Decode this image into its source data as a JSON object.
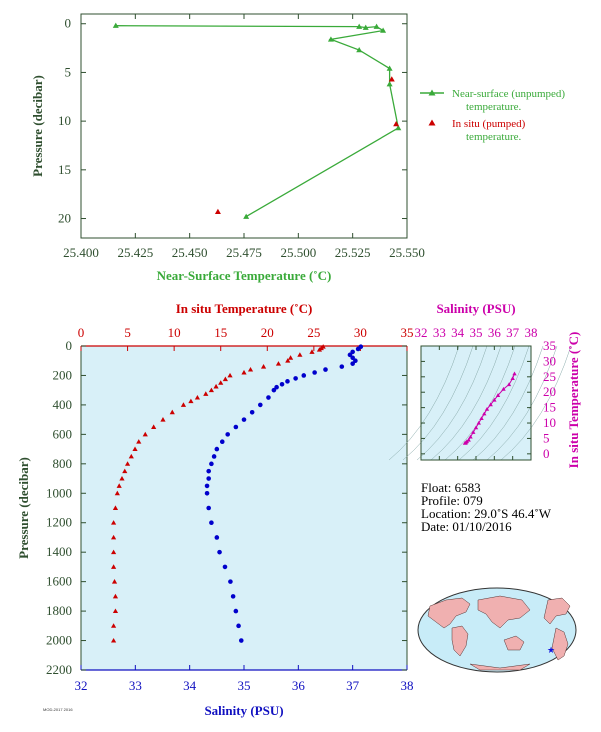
{
  "chart_data": [
    {
      "type": "line",
      "xlabel": "Near-Surface Temperature (˚C)",
      "ylabel": "Pressure (decibar)",
      "xlim": [
        25.4,
        25.55
      ],
      "ylim": [
        22,
        -1
      ],
      "x_ticks": [
        "25.400",
        "25.425",
        "25.450",
        "25.475",
        "25.500",
        "25.525",
        "25.550"
      ],
      "y_ticks": [
        "0",
        "5",
        "10",
        "15",
        "20"
      ],
      "series": [
        {
          "name": "Near-surface (unpumped) temperature.",
          "color": "#3aaa3a",
          "x": [
            25.416,
            25.528,
            25.531,
            25.536,
            25.539,
            25.515,
            25.528,
            25.542,
            25.542,
            25.546,
            25.476
          ],
          "y": [
            0.2,
            0.3,
            0.4,
            0.3,
            0.7,
            1.6,
            2.7,
            4.6,
            6.2,
            10.7,
            19.8
          ]
        },
        {
          "name": "In situ (pumped) temperature.",
          "color": "#cc0000",
          "x": [
            25.543,
            25.545,
            25.463
          ],
          "y": [
            5.7,
            10.3,
            19.3
          ]
        }
      ],
      "legend_position": "right"
    },
    {
      "type": "scatter",
      "xlabel_top": "In situ Temperature (˚C)",
      "xlabel_bottom": "Salinity (PSU)",
      "ylabel": "Pressure (decibar)",
      "temp_lim": [
        0,
        35
      ],
      "sal_lim": [
        32,
        38
      ],
      "ylim": [
        2200,
        0
      ],
      "temp_ticks": [
        "0",
        "5",
        "10",
        "15",
        "20",
        "25",
        "30",
        "35"
      ],
      "sal_ticks": [
        "32",
        "33",
        "34",
        "35",
        "36",
        "37",
        "38"
      ],
      "pres_ticks": [
        "0",
        "200",
        "400",
        "600",
        "800",
        "1000",
        "1200",
        "1400",
        "1600",
        "1800",
        "2000",
        "2200"
      ],
      "temperature": {
        "color": "#cc0000",
        "p": [
          5,
          15,
          25,
          40,
          60,
          80,
          100,
          120,
          140,
          160,
          180,
          200,
          225,
          250,
          275,
          300,
          325,
          350,
          375,
          400,
          450,
          500,
          550,
          600,
          650,
          700,
          750,
          800,
          850,
          900,
          950,
          1000,
          1100,
          1200,
          1300,
          1400,
          1500,
          1600,
          1700,
          1800,
          1900,
          2000
        ],
        "t": [
          26.0,
          25.8,
          25.6,
          24.8,
          23.5,
          22.5,
          22.2,
          21.2,
          19.6,
          18.2,
          17.5,
          16.0,
          15.5,
          15.0,
          14.5,
          14.0,
          13.4,
          12.5,
          11.8,
          11.0,
          9.8,
          8.8,
          7.8,
          6.9,
          6.2,
          5.8,
          5.4,
          5.0,
          4.7,
          4.4,
          4.1,
          3.9,
          3.7,
          3.5,
          3.5,
          3.5,
          3.5,
          3.6,
          3.7,
          3.7,
          3.5,
          3.5
        ]
      },
      "salinity": {
        "color": "#0000cc",
        "p": [
          5,
          20,
          40,
          60,
          80,
          100,
          120,
          140,
          160,
          180,
          200,
          220,
          240,
          260,
          280,
          300,
          350,
          400,
          450,
          500,
          550,
          600,
          650,
          700,
          750,
          800,
          850,
          900,
          950,
          1000,
          1100,
          1200,
          1300,
          1400,
          1500,
          1600,
          1700,
          1800,
          1900,
          2000
        ],
        "s": [
          37.15,
          37.1,
          37.0,
          36.95,
          37.0,
          37.05,
          37.0,
          36.8,
          36.5,
          36.3,
          36.1,
          35.95,
          35.8,
          35.7,
          35.6,
          35.55,
          35.45,
          35.3,
          35.15,
          35.0,
          34.85,
          34.7,
          34.6,
          34.5,
          34.45,
          34.4,
          34.35,
          34.35,
          34.32,
          34.32,
          34.35,
          34.4,
          34.5,
          34.55,
          34.65,
          34.75,
          34.8,
          34.85,
          34.9,
          34.95
        ]
      },
      "legend_position": "none"
    },
    {
      "type": "scatter",
      "xlabel": "Salinity (PSU)",
      "ylabel": "In situ Temperature (˚C)",
      "xlim": [
        32,
        38
      ],
      "ylim": [
        -2,
        35
      ],
      "x_ticks": [
        "32",
        "33",
        "34",
        "35",
        "36",
        "37",
        "38"
      ],
      "y_ticks": [
        "0",
        "5",
        "10",
        "15",
        "20",
        "25",
        "30",
        "35"
      ],
      "series": [
        {
          "color": "#cc00aa",
          "x": [
            34.4,
            34.45,
            34.5,
            34.6,
            34.7,
            34.85,
            35.0,
            35.15,
            35.3,
            35.45,
            35.6,
            35.8,
            36.0,
            36.2,
            36.5,
            36.8,
            37.0,
            37.1
          ],
          "y": [
            3.5,
            3.6,
            4.0,
            4.5,
            5.5,
            7.0,
            8.5,
            10.0,
            11.5,
            13.0,
            14.5,
            16.0,
            17.5,
            19.0,
            21.0,
            22.5,
            24.5,
            26.0
          ]
        }
      ]
    }
  ],
  "info": {
    "float": "Float:  6583",
    "profile": "Profile:  079",
    "location": "Location:  29.0˚S  46.4˚W",
    "date": "Date:  01/10/2016"
  },
  "footer_stamp": "MOD-2017 2016",
  "colors": {
    "green": "#3aaa3a",
    "red": "#cc0000",
    "blue": "#0000cc",
    "magenta": "#cc00aa",
    "panel_bg": "#d8f0f8",
    "axis": "#2f4f2f"
  }
}
